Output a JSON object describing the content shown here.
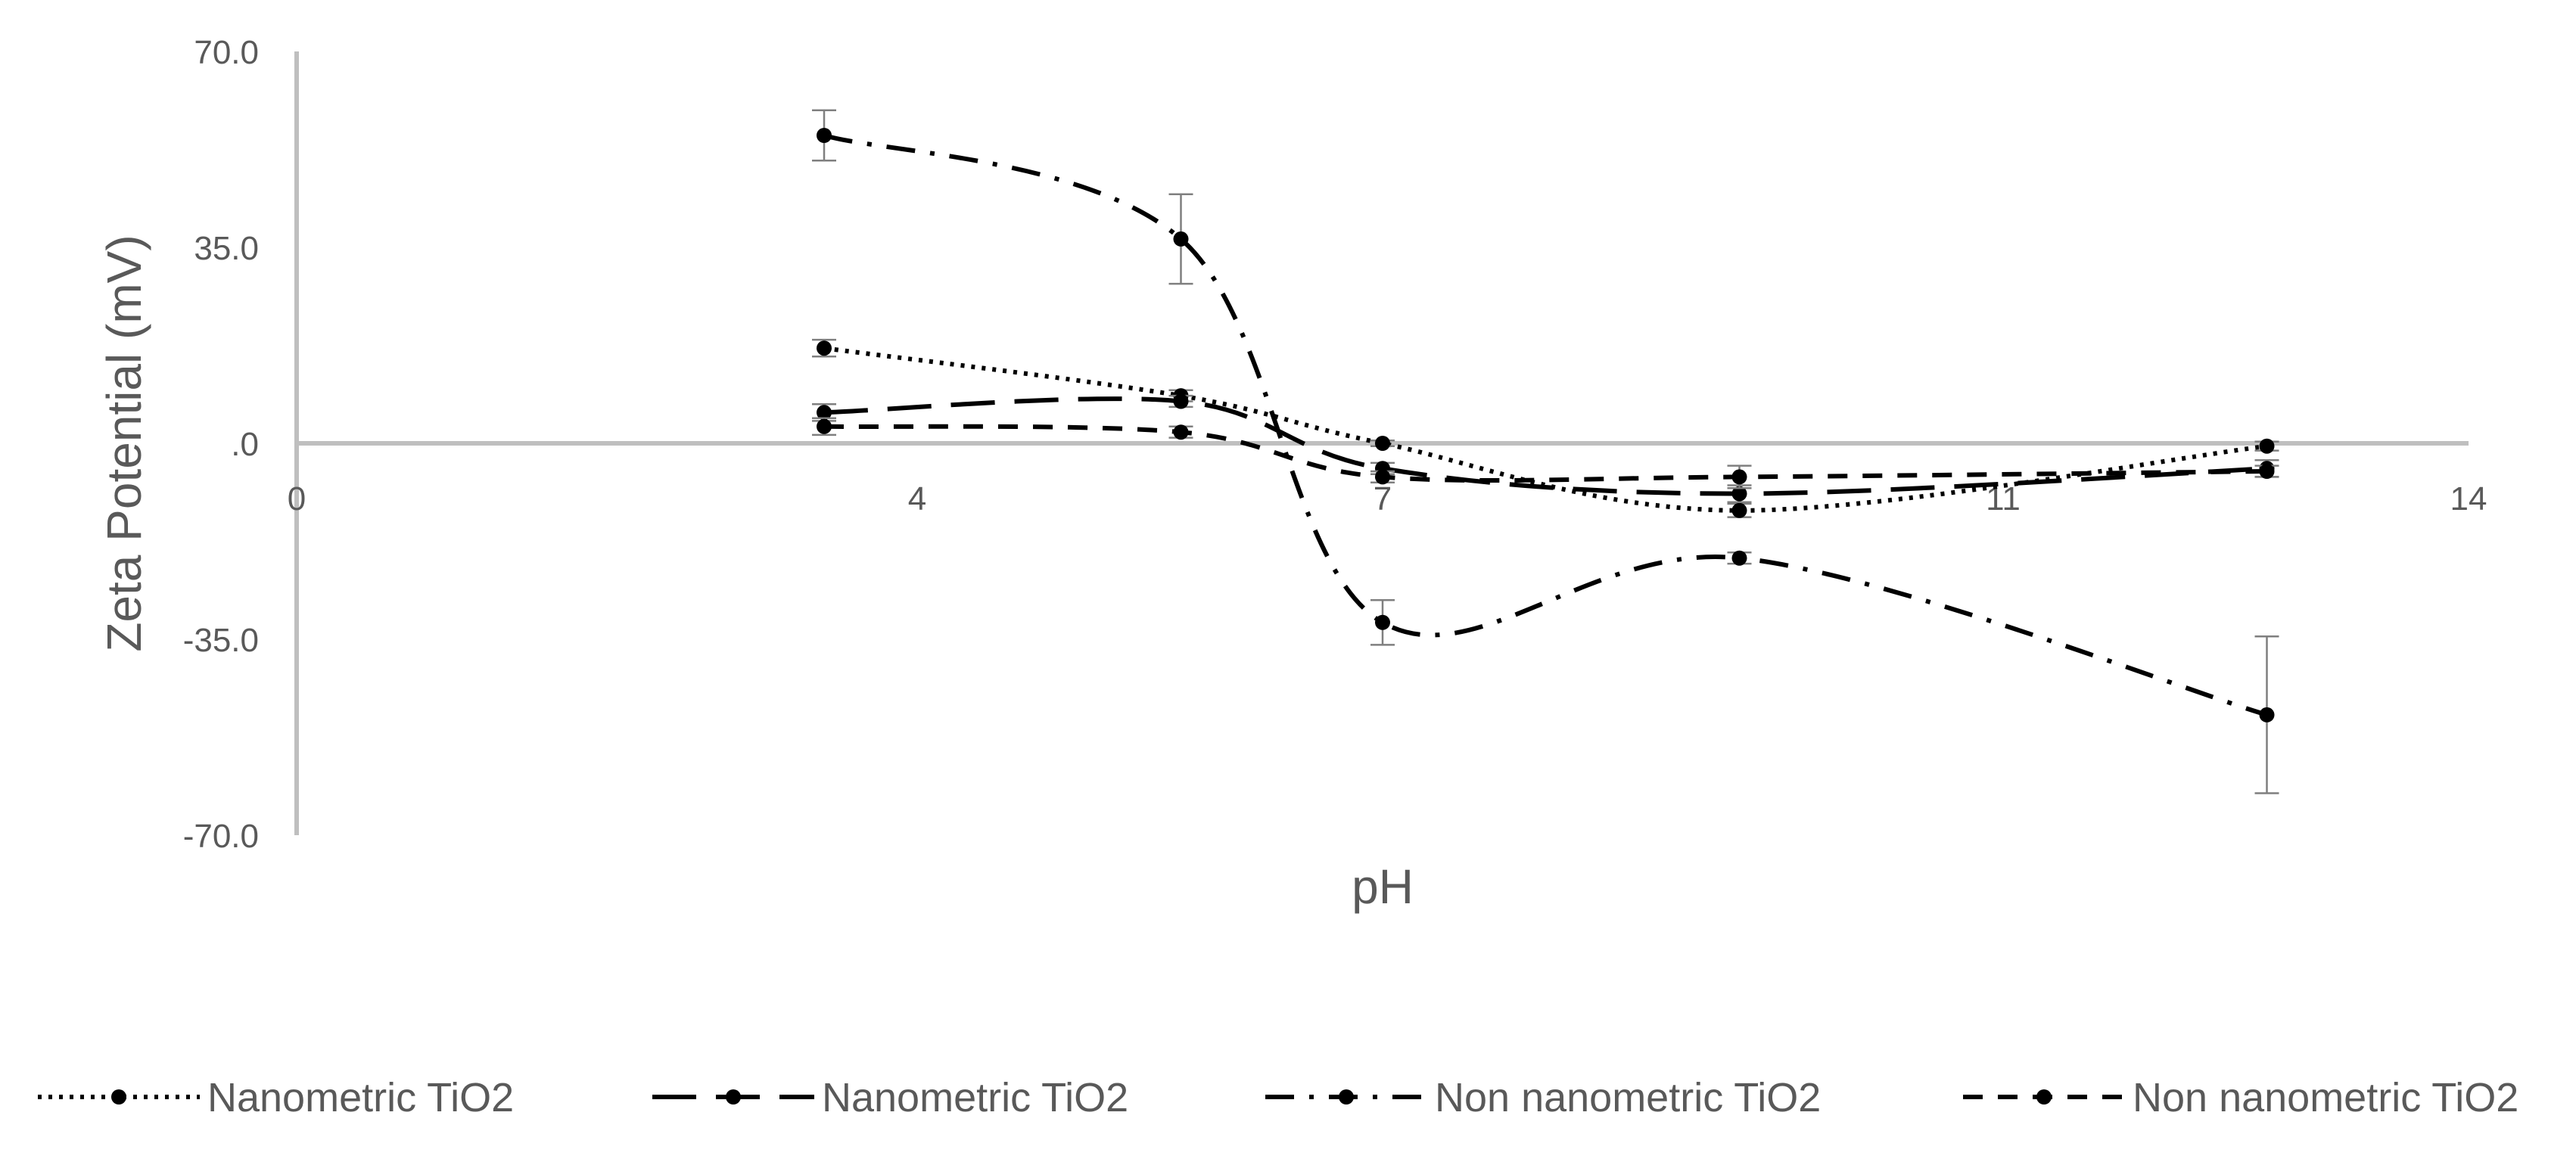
{
  "chart_data": {
    "type": "line",
    "title": "",
    "xlabel": "pH",
    "ylabel": "Zeta Potential (mV)",
    "xlim": [
      0,
      14
    ],
    "ylim": [
      -70,
      70
    ],
    "x_ticks": [
      0,
      4,
      7,
      11,
      14
    ],
    "x_tick_labels": [
      "0",
      "4",
      "7",
      "11",
      "14"
    ],
    "y_ticks": [
      70,
      35,
      0,
      -35,
      -70
    ],
    "y_tick_labels": [
      "70.0",
      "35.0",
      ".0",
      "-35.0",
      "-70.0"
    ],
    "grid": false,
    "legend_position": "bottom",
    "colors": {
      "axis": "#bfbfbf",
      "line": "#000000",
      "text": "#595959",
      "errorbar": "#7f7f7f"
    },
    "series": [
      {
        "name": "Nanometric TiO2",
        "dash": "dotted",
        "x": [
          3.4,
          5.7,
          7.0,
          9.3,
          12.7
        ],
        "y": [
          17.0,
          8.5,
          0.0,
          -12.0,
          -0.5
        ],
        "err": [
          1.5,
          1.0,
          0.5,
          1.2,
          0.8
        ]
      },
      {
        "name": "Nanometric TiO2",
        "dash": "long-dash",
        "x": [
          3.4,
          5.7,
          7.0,
          9.3,
          12.7
        ],
        "y": [
          5.5,
          7.5,
          -4.5,
          -9.0,
          -4.5
        ],
        "err": [
          1.5,
          1.0,
          1.0,
          1.5,
          1.5
        ]
      },
      {
        "name": "Non nanometric TiO2",
        "dash": "dash-dot",
        "x": [
          3.4,
          5.7,
          7.0,
          9.3,
          12.7
        ],
        "y": [
          55.0,
          36.5,
          -32.0,
          -20.5,
          -48.5
        ],
        "err": [
          4.5,
          8.0,
          4.0,
          1.0,
          14.0
        ]
      },
      {
        "name": "Non nanometric TiO2",
        "dash": "short-dash",
        "x": [
          3.4,
          5.7,
          7.0,
          9.3,
          12.7
        ],
        "y": [
          3.0,
          2.0,
          -6.0,
          -6.0,
          -5.0
        ],
        "err": [
          1.5,
          1.0,
          1.0,
          2.0,
          1.0
        ]
      }
    ]
  }
}
